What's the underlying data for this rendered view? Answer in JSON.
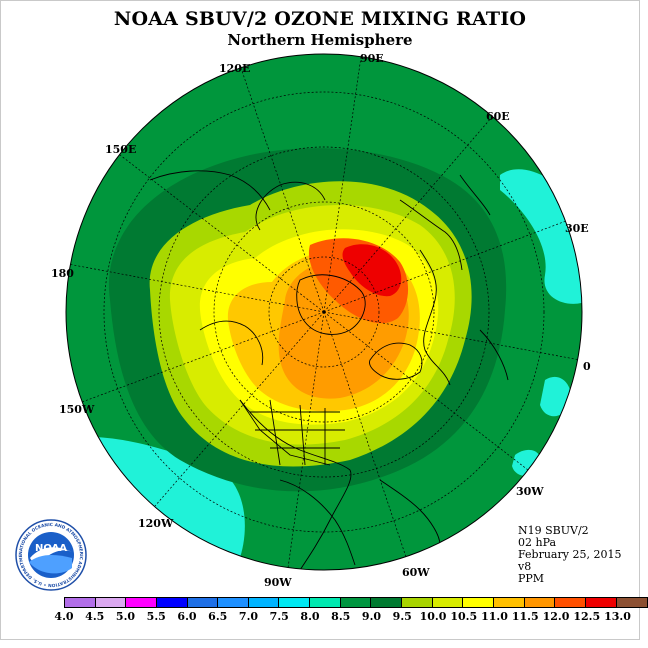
{
  "title": "NOAA SBUV/2 OZONE MIXING RATIO",
  "subtitle": "Northern Hemisphere",
  "longitude_labels": [
    "90E",
    "60E",
    "30E",
    "0",
    "30W",
    "60W",
    "90W",
    "120W",
    "150W",
    "180",
    "150E",
    "120E"
  ],
  "info": {
    "satellite": "N19 SBUV/2",
    "level": "02 hPa",
    "date": "February 25, 2015",
    "version": "v8",
    "units": "PPM"
  },
  "logo_text": "NOAA",
  "logo_ring_text": "NATIONAL OCEANIC AND ATMOSPHERIC ADMINISTRATION • U.S. DEPARTMENT OF COMMERCE •",
  "colorbar": {
    "labels": [
      "4.0",
      "4.5",
      "5.0",
      "5.5",
      "6.0",
      "6.5",
      "7.0",
      "7.5",
      "8.0",
      "8.5",
      "9.0",
      "9.5",
      "10.0",
      "10.5",
      "11.0",
      "11.5",
      "12.0",
      "12.5",
      "13.0"
    ],
    "colors": [
      "#b26ee8",
      "#dba8f0",
      "#ff00ff",
      "#0000ff",
      "#1e6fe6",
      "#1e90ff",
      "#00b4ff",
      "#00e8f2",
      "#00e8b0",
      "#009640",
      "#007a30",
      "#a8d400",
      "#d8ec00",
      "#ffff00",
      "#ffc000",
      "#ff9600",
      "#ff5000",
      "#ee0000",
      "#8c5032"
    ]
  },
  "field_colors": {
    "ocean_ring": "#00963c",
    "dark_band": "#007a32",
    "cyan_patch": "#20f2d8",
    "light_green": "#a8d800",
    "yellow_green": "#d8ec00",
    "yellow": "#ffff00",
    "gold": "#ffc800",
    "orange": "#ff9c00",
    "dark_orange": "#ff5a00",
    "red": "#ee0000"
  }
}
